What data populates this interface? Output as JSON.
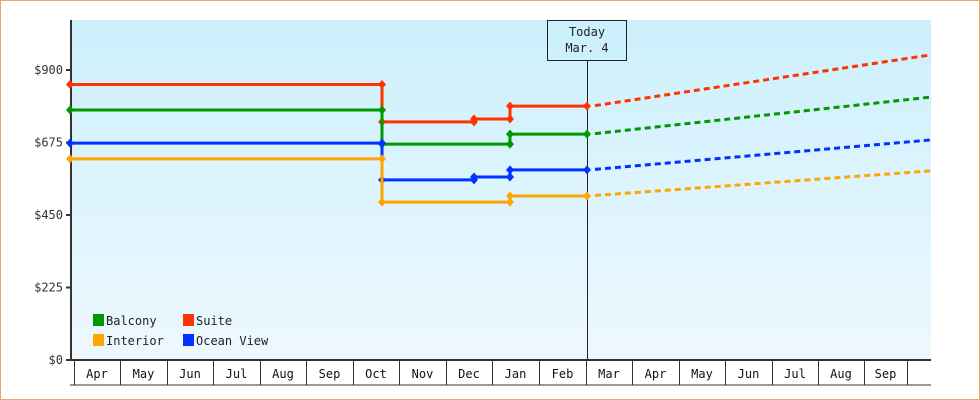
{
  "chart_data": {
    "type": "line",
    "title": "",
    "xlabel": "",
    "ylabel": "",
    "ylim": [
      0,
      1000
    ],
    "y_ticks": [
      "$0",
      "$225",
      "$450",
      "$675",
      "$900"
    ],
    "x_tick_labels": [
      "Apr",
      "May",
      "Jun",
      "Jul",
      "Aug",
      "Sep",
      "Oct",
      "Nov",
      "Dec",
      "Jan",
      "Feb",
      "Mar",
      "Apr",
      "May",
      "Jun",
      "Jul",
      "Aug",
      "Sep"
    ],
    "grid": false,
    "legend_position": "bottom-left inside",
    "annotation": {
      "line1": "Today",
      "line2": "Mar. 4"
    },
    "series": [
      {
        "name": "Suite",
        "color": "#ff3300",
        "points": [
          [
            "Apr 1",
            855
          ],
          [
            "Oct 8",
            855
          ],
          [
            "Oct 8",
            739
          ],
          [
            "Dec 1",
            739
          ],
          [
            "Dec 1",
            748
          ],
          [
            "Jan 1",
            748
          ],
          [
            "Jan 1",
            788
          ],
          [
            "Mar 4",
            788
          ]
        ],
        "projection": [
          [
            "Mar 4",
            788
          ],
          [
            "Sep 30",
            947
          ]
        ]
      },
      {
        "name": "Balcony",
        "color": "#009900",
        "points": [
          [
            "Apr 1",
            776
          ],
          [
            "Oct 8",
            776
          ],
          [
            "Oct 8",
            670
          ],
          [
            "Jan 1",
            670
          ],
          [
            "Jan 1",
            701
          ],
          [
            "Mar 4",
            701
          ]
        ],
        "projection": [
          [
            "Mar 4",
            701
          ],
          [
            "Sep 30",
            816
          ]
        ]
      },
      {
        "name": "Ocean View",
        "color": "#0033ff",
        "points": [
          [
            "Apr 1",
            673
          ],
          [
            "Oct 8",
            673
          ],
          [
            "Oct 8",
            559
          ],
          [
            "Dec 1",
            559
          ],
          [
            "Dec 1",
            568
          ],
          [
            "Jan 1",
            568
          ],
          [
            "Jan 1",
            590
          ],
          [
            "Mar 4",
            590
          ]
        ],
        "projection": [
          [
            "Mar 4",
            590
          ],
          [
            "Sep 30",
            683
          ]
        ]
      },
      {
        "name": "Interior",
        "color": "#ffa500",
        "points": [
          [
            "Apr 1",
            624
          ],
          [
            "Oct 8",
            624
          ],
          [
            "Oct 8",
            490
          ],
          [
            "Jan 1",
            490
          ],
          [
            "Jan 1",
            509
          ],
          [
            "Mar 4",
            509
          ]
        ],
        "projection": [
          [
            "Mar 4",
            509
          ],
          [
            "Sep 30",
            587
          ]
        ]
      }
    ]
  },
  "legend": [
    {
      "label": "Balcony",
      "color": "#009900"
    },
    {
      "label": "Suite",
      "color": "#ff3300"
    },
    {
      "label": "Interior",
      "color": "#ffa500"
    },
    {
      "label": "Ocean View",
      "color": "#0033ff"
    }
  ]
}
